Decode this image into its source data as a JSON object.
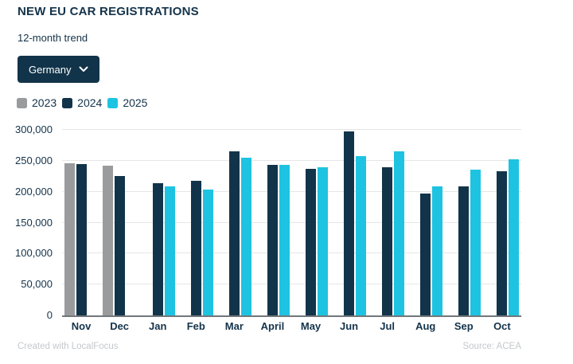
{
  "chart_data": {
    "type": "bar",
    "title": "NEW EU CAR REGISTRATIONS",
    "subtitle": "12-month trend",
    "categories": [
      "Nov",
      "Dec",
      "Jan",
      "Feb",
      "Mar",
      "April",
      "May",
      "Jun",
      "Jul",
      "Aug",
      "Sep",
      "Oct"
    ],
    "series": [
      {
        "name": "2023",
        "color": "#9a9b9d",
        "values": [
          246000,
          242000,
          null,
          null,
          null,
          null,
          null,
          null,
          null,
          null,
          null,
          null
        ]
      },
      {
        "name": "2024",
        "color": "#12344a",
        "values": [
          245000,
          225000,
          214000,
          217000,
          265000,
          244000,
          237000,
          298000,
          239000,
          197000,
          209000,
          233000
        ]
      },
      {
        "name": "2025",
        "color": "#1ec3e1",
        "values": [
          null,
          null,
          208000,
          204000,
          255000,
          244000,
          240000,
          257000,
          265000,
          208000,
          236000,
          252000
        ]
      }
    ],
    "ylim": [
      0,
      300000
    ],
    "yticks": [
      {
        "label": "0",
        "value": 0
      },
      {
        "label": "50,000",
        "value": 50000
      },
      {
        "label": "100,000",
        "value": 100000
      },
      {
        "label": "150,000",
        "value": 150000
      },
      {
        "label": "200,000",
        "value": 200000
      },
      {
        "label": "250,000",
        "value": 250000
      },
      {
        "label": "300,000",
        "value": 300000
      }
    ],
    "grid": true,
    "legend_position": "top-left"
  },
  "controls": {
    "country_selected": "Germany"
  },
  "footer": {
    "credit": "Created with LocalFocus",
    "source": "Source: ACEA"
  },
  "colors": {
    "navy": "#12344a",
    "cyan": "#1ec3e1",
    "gray": "#9a9b9d",
    "text": "#14334a",
    "gridline": "#e6e6e6",
    "axis_line": "#72777b",
    "footer_text": "#c4c8cb",
    "background": "#ffffff"
  }
}
